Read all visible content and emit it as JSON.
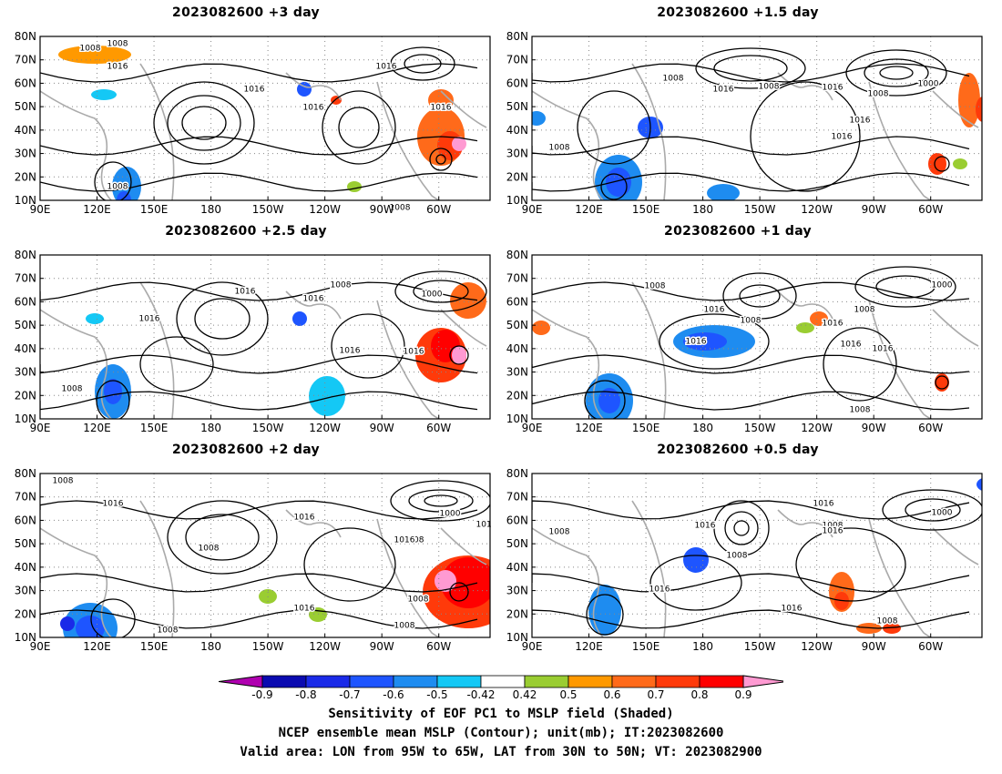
{
  "panels": [
    {
      "title": "2023082600  +3 day",
      "labels": [
        "1008",
        "1016",
        "1008",
        "1016",
        "1016",
        "1016",
        "1016",
        "1008",
        "1008"
      ]
    },
    {
      "title": "2023082600  +1.5 day",
      "labels": [
        "1008",
        "1016",
        "1008",
        "1016",
        "1016",
        "1000",
        "1008",
        "1016",
        "1008"
      ]
    },
    {
      "title": "2023082600  +2.5 day",
      "labels": [
        "1016",
        "1016",
        "1008",
        "1016",
        "1016",
        "1000",
        "1016",
        "1008"
      ]
    },
    {
      "title": "2023082600  +1 day",
      "labels": [
        "1008",
        "1016",
        "1016",
        "1008",
        "1016",
        "1000",
        "1008",
        "1016",
        "1016",
        "1008"
      ]
    },
    {
      "title": "2023082600  +2 day",
      "labels": [
        "1008",
        "1016",
        "1016",
        "1008",
        "1016",
        "1008",
        "1000",
        "1016",
        "1016",
        "1008",
        "1008",
        "1008"
      ]
    },
    {
      "title": "2023082600  +0.5 day",
      "labels": [
        "1008",
        "1016",
        "1008",
        "1016",
        "1008",
        "1000",
        "1016",
        "1008",
        "1016",
        "1016"
      ]
    }
  ],
  "map_axes": {
    "lat_labels": [
      "80N",
      "70N",
      "60N",
      "50N",
      "40N",
      "30N",
      "20N",
      "10N"
    ],
    "lon_labels": [
      "90E",
      "120E",
      "150E",
      "180",
      "150W",
      "120W",
      "90W",
      "60W"
    ]
  },
  "colorbar": {
    "tick_labels": [
      "-0.9",
      "-0.8",
      "-0.7",
      "-0.6",
      "-0.5",
      "-0.42",
      "0.42",
      "0.5",
      "0.6",
      "0.7",
      "0.8",
      "0.9"
    ],
    "colors": [
      "#b000b0",
      "#0a0ab0",
      "#1a2ae8",
      "#1e55ff",
      "#1e8cf0",
      "#14c8f5",
      "#ffffff",
      "#9acd32",
      "#ff9900",
      "#ff6a1a",
      "#ff3a0a",
      "#ff0000",
      "#ff9ad2"
    ]
  },
  "caption": {
    "line1": "Sensitivity of EOF PC1 to MSLP field (Shaded)",
    "line2": "NCEP ensemble mean MSLP (Contour); unit(mb); IT:2023082600",
    "line3": "Valid area: LON from 95W to 65W, LAT from 30N to 50N; VT: 2023082900"
  }
}
